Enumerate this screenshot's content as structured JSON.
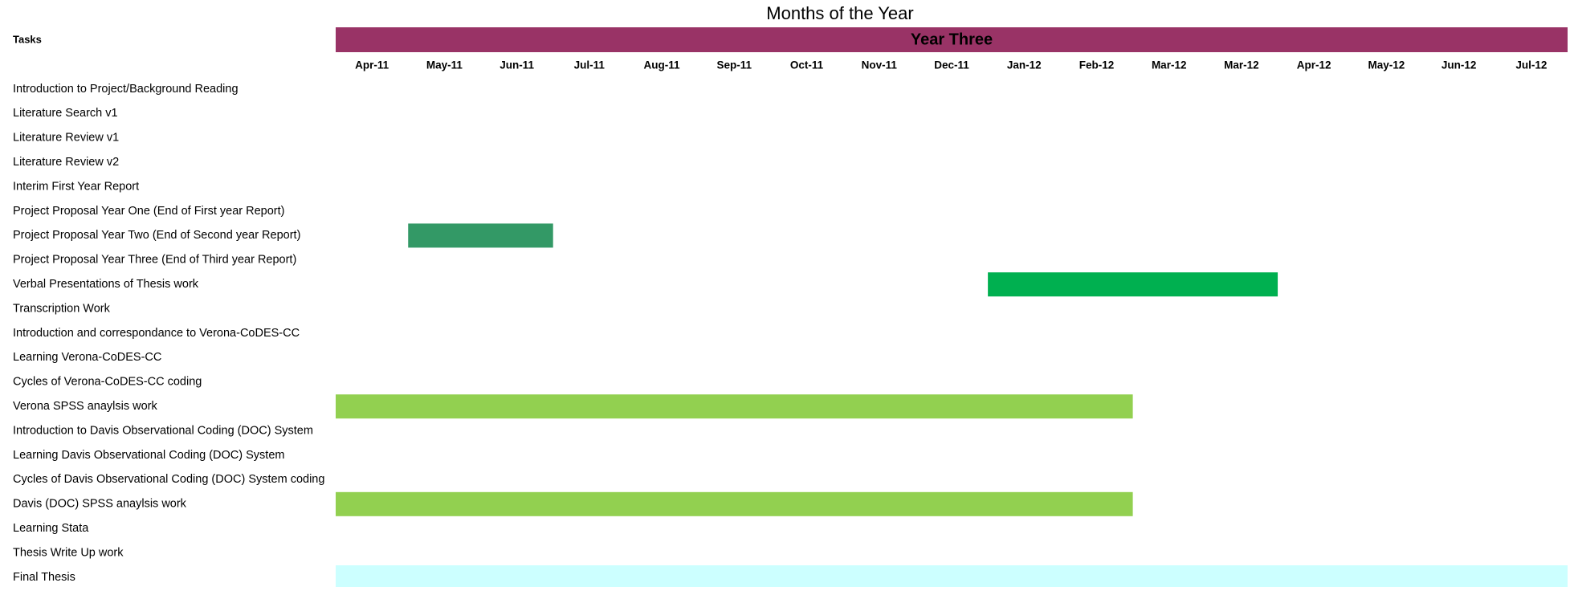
{
  "chart_data": {
    "type": "gantt",
    "title": "Months of the Year",
    "header": "Year Three",
    "header_color": "#993366",
    "task_label": "Tasks",
    "categories": [
      "Apr-11",
      "May-11",
      "Jun-11",
      "Jul-11",
      "Aug-11",
      "Sep-11",
      "Oct-11",
      "Nov-11",
      "Dec-11",
      "Jan-12",
      "Feb-12",
      "Mar-12",
      "Mar-12",
      "Apr-12",
      "May-12",
      "Jun-12",
      "Jul-12"
    ],
    "tasks": [
      "Introduction to Project/Background Reading",
      "Literature Search v1",
      "Literature Review v1",
      "Literature Review v2",
      "Interim First Year Report",
      "Project Proposal Year One (End of First year Report)",
      "Project Proposal Year Two (End of Second  year Report)",
      "Project Proposal Year Three (End of Third year Report)",
      "Verbal Presentations of Thesis work",
      "Transcription Work",
      "Introduction and correspondance to Verona-CoDES-CC",
      "Learning Verona-CoDES-CC",
      "Cycles of Verona-CoDES-CC coding",
      "Verona SPSS anaylsis work",
      "Introduction to Davis Observational Coding (DOC) System",
      "Learning Davis Observational Coding (DOC) System",
      "Cycles of Davis Observational Coding (DOC) System coding",
      "Davis (DOC) SPSS anaylsis work",
      "Learning  Stata",
      "Thesis Write Up work",
      "Final Thesis"
    ],
    "bars": [
      {
        "task": 6,
        "start": 1,
        "end": 2,
        "color": "#339966"
      },
      {
        "task": 8,
        "start": 9,
        "end": 12,
        "color": "#00b050"
      },
      {
        "task": 13,
        "start": 0,
        "end": 10,
        "color": "#92d050"
      },
      {
        "task": 17,
        "start": 0,
        "end": 10,
        "color": "#92d050"
      },
      {
        "task": 20,
        "start": 0,
        "end": 16,
        "color": "#ccffff"
      }
    ]
  }
}
